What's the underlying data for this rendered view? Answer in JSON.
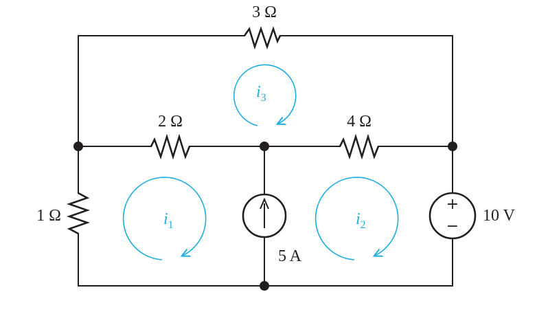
{
  "colors": {
    "line": "#231f20",
    "loop_accent": "#1eaee0",
    "background": "#ffffff"
  },
  "resistors": {
    "r3": {
      "label": "3 Ω"
    },
    "r2": {
      "label": "2 Ω"
    },
    "r4": {
      "label": "4 Ω"
    },
    "r1": {
      "label": "1 Ω"
    }
  },
  "sources": {
    "current": {
      "label": "5 A",
      "icon": "up-arrow-icon"
    },
    "voltage": {
      "label": "10 V",
      "plus": "+",
      "minus": "−"
    }
  },
  "mesh_currents": {
    "i1": {
      "symbol": "i",
      "subscript": "1"
    },
    "i2": {
      "symbol": "i",
      "subscript": "2"
    },
    "i3": {
      "symbol": "i",
      "subscript": "3"
    }
  }
}
